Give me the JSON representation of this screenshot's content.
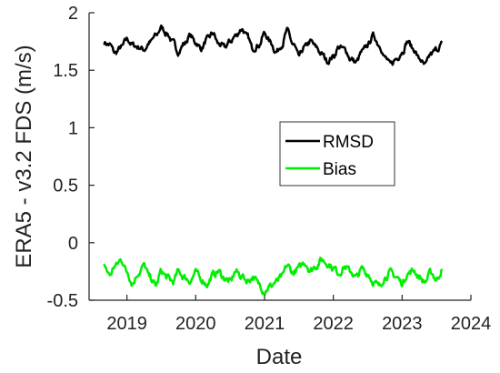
{
  "chart_data": {
    "type": "line",
    "xlabel": "Date",
    "ylabel": "ERA5 - v3.2  FDS (m/s)",
    "xlim": [
      2018.45,
      2024.0
    ],
    "ylim": [
      -0.5,
      2.0
    ],
    "x_ticks": [
      2019,
      2020,
      2021,
      2022,
      2023,
      2024
    ],
    "y_ticks": [
      -0.5,
      0,
      0.5,
      1,
      1.5,
      2
    ],
    "x_tick_labels": [
      "2019",
      "2020",
      "2021",
      "2022",
      "2023",
      "2024"
    ],
    "y_tick_labels": [
      "-0.5",
      "0",
      "0.5",
      "1",
      "1.5",
      "2"
    ],
    "grid": false,
    "legend": {
      "placement": "center-right",
      "entries": [
        "RMSD",
        "Bias"
      ]
    },
    "x_range": [
      2018.67,
      2023.58
    ],
    "series": [
      {
        "name": "RMSD",
        "color": "#000000",
        "x": [
          2018.67,
          2018.75,
          2018.83,
          2018.92,
          2019.0,
          2019.08,
          2019.17,
          2019.25,
          2019.33,
          2019.42,
          2019.5,
          2019.58,
          2019.67,
          2019.75,
          2019.83,
          2019.92,
          2020.0,
          2020.08,
          2020.17,
          2020.25,
          2020.33,
          2020.42,
          2020.5,
          2020.58,
          2020.67,
          2020.75,
          2020.83,
          2020.92,
          2021.0,
          2021.08,
          2021.17,
          2021.25,
          2021.33,
          2021.42,
          2021.5,
          2021.58,
          2021.67,
          2021.75,
          2021.83,
          2021.92,
          2022.0,
          2022.08,
          2022.17,
          2022.25,
          2022.33,
          2022.42,
          2022.5,
          2022.58,
          2022.67,
          2022.75,
          2022.83,
          2022.92,
          2023.0,
          2023.08,
          2023.17,
          2023.25,
          2023.33,
          2023.42,
          2023.5,
          2023.58
        ],
        "values": [
          1.74,
          1.72,
          1.65,
          1.7,
          1.77,
          1.72,
          1.7,
          1.68,
          1.74,
          1.8,
          1.87,
          1.82,
          1.74,
          1.66,
          1.73,
          1.8,
          1.74,
          1.69,
          1.77,
          1.82,
          1.73,
          1.7,
          1.75,
          1.8,
          1.86,
          1.79,
          1.69,
          1.72,
          1.82,
          1.75,
          1.66,
          1.72,
          1.84,
          1.72,
          1.62,
          1.7,
          1.75,
          1.7,
          1.64,
          1.58,
          1.62,
          1.7,
          1.68,
          1.6,
          1.57,
          1.66,
          1.72,
          1.8,
          1.72,
          1.61,
          1.55,
          1.6,
          1.66,
          1.75,
          1.68,
          1.6,
          1.54,
          1.64,
          1.68,
          1.73
        ]
      },
      {
        "name": "Bias",
        "color": "#00ee00",
        "x": [
          2018.67,
          2018.75,
          2018.83,
          2018.92,
          2019.0,
          2019.08,
          2019.17,
          2019.25,
          2019.33,
          2019.42,
          2019.5,
          2019.58,
          2019.67,
          2019.75,
          2019.83,
          2019.92,
          2020.0,
          2020.08,
          2020.17,
          2020.25,
          2020.33,
          2020.42,
          2020.5,
          2020.58,
          2020.67,
          2020.75,
          2020.83,
          2020.92,
          2021.0,
          2021.08,
          2021.17,
          2021.25,
          2021.33,
          2021.42,
          2021.5,
          2021.58,
          2021.67,
          2021.75,
          2021.83,
          2021.92,
          2022.0,
          2022.08,
          2022.17,
          2022.25,
          2022.33,
          2022.42,
          2022.5,
          2022.58,
          2022.67,
          2022.75,
          2022.83,
          2022.92,
          2023.0,
          2023.08,
          2023.17,
          2023.25,
          2023.33,
          2023.42,
          2023.5,
          2023.58
        ],
        "values": [
          -0.2,
          -0.28,
          -0.2,
          -0.15,
          -0.25,
          -0.35,
          -0.26,
          -0.2,
          -0.3,
          -0.37,
          -0.25,
          -0.3,
          -0.34,
          -0.25,
          -0.3,
          -0.33,
          -0.26,
          -0.32,
          -0.36,
          -0.28,
          -0.25,
          -0.31,
          -0.34,
          -0.25,
          -0.29,
          -0.33,
          -0.3,
          -0.36,
          -0.42,
          -0.38,
          -0.34,
          -0.3,
          -0.2,
          -0.26,
          -0.22,
          -0.17,
          -0.24,
          -0.2,
          -0.15,
          -0.18,
          -0.22,
          -0.26,
          -0.21,
          -0.25,
          -0.3,
          -0.23,
          -0.27,
          -0.34,
          -0.38,
          -0.3,
          -0.26,
          -0.3,
          -0.35,
          -0.27,
          -0.24,
          -0.3,
          -0.34,
          -0.26,
          -0.32,
          -0.24
        ]
      }
    ]
  }
}
